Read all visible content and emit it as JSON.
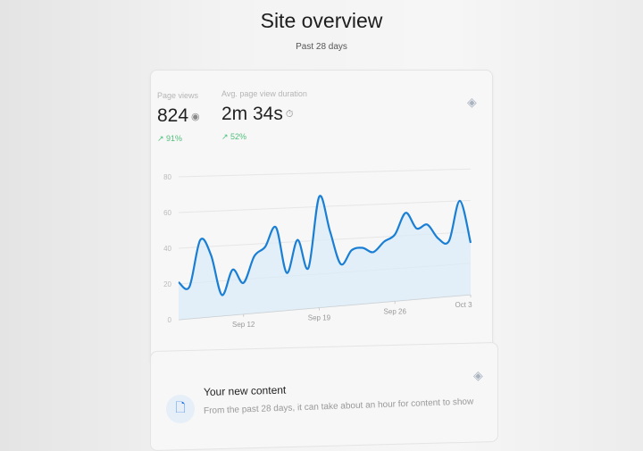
{
  "header": {
    "title": "Site overview",
    "subtitle": "Past 28 days"
  },
  "metrics": [
    {
      "label": "Page views",
      "value": "824",
      "icon": "eye-icon",
      "change": "91%"
    },
    {
      "label": "Avg. page view duration",
      "value": "2m 34s",
      "icon": "timer-icon",
      "change": "52%"
    }
  ],
  "new_content": {
    "title": "Your new content",
    "description": "From the past 28 days, it can take about an hour for content to show",
    "icon": "document-icon"
  },
  "colors": {
    "line": "#1a7fd4",
    "fill": "#d9ebf8",
    "positive": "#4fbf7a"
  },
  "chart_data": {
    "type": "area",
    "x_ticks": [
      "Sep 12",
      "Sep 19",
      "Sep 26",
      "Oct 3"
    ],
    "y_ticks": [
      "0",
      "20",
      "40",
      "60",
      "80"
    ],
    "ylim": [
      0,
      80
    ],
    "grid": true,
    "x": [
      "Sep 6",
      "Sep 7",
      "Sep 8",
      "Sep 9",
      "Sep 10",
      "Sep 11",
      "Sep 12",
      "Sep 13",
      "Sep 14",
      "Sep 15",
      "Sep 16",
      "Sep 17",
      "Sep 18",
      "Sep 19",
      "Sep 20",
      "Sep 21",
      "Sep 22",
      "Sep 23",
      "Sep 24",
      "Sep 25",
      "Sep 26",
      "Sep 27",
      "Sep 28",
      "Sep 29",
      "Sep 30",
      "Oct 1",
      "Oct 2",
      "Oct 3"
    ],
    "values": [
      21,
      18,
      44,
      35,
      12,
      26,
      18,
      33,
      38,
      49,
      22,
      41,
      24,
      66,
      45,
      25,
      33,
      34,
      31,
      37,
      41,
      54,
      44,
      46,
      37,
      35,
      60,
      33
    ]
  }
}
